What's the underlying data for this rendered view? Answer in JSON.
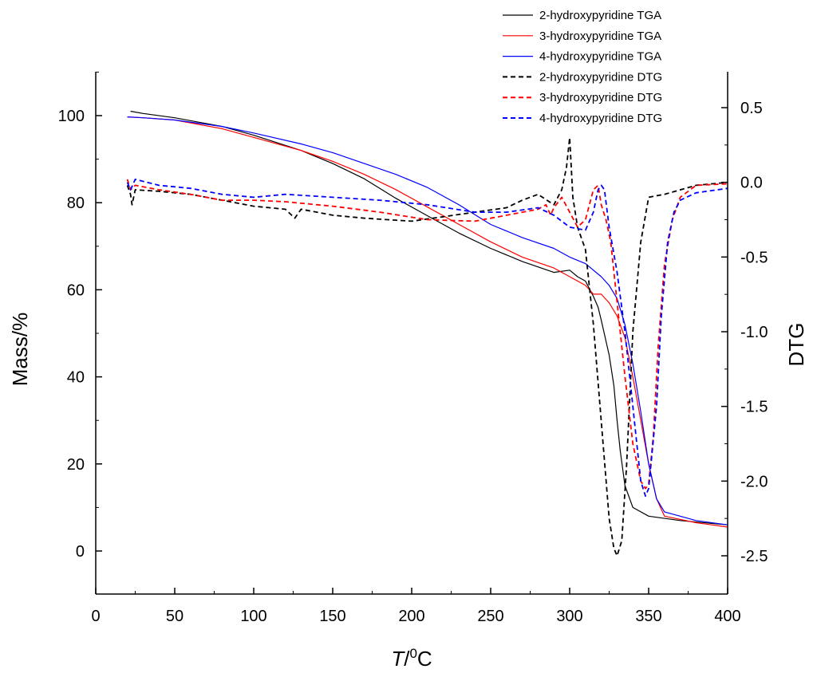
{
  "chart_data": {
    "type": "line",
    "xlabel_italic": "T",
    "xlabel_sup": "0",
    "xlabel_unit": "C",
    "xlabel_sep": "/",
    "ylabel": "Mass/%",
    "y2label": "DTG",
    "xlim": [
      0,
      400
    ],
    "ylim": [
      -10,
      110
    ],
    "y2lim": [
      -2.6,
      0.75
    ],
    "xticks": [
      0,
      50,
      100,
      150,
      200,
      250,
      300,
      350,
      400
    ],
    "yticks": [
      0,
      20,
      40,
      60,
      80,
      100
    ],
    "y2ticks": [
      0.5,
      0.0,
      -0.5,
      -1.0,
      -1.5,
      -2.0,
      -2.5
    ],
    "y2tick_labels": [
      "0.5",
      "0.0",
      "-0.5",
      "-1.0",
      "-1.5",
      "-2.0",
      "-2.5"
    ],
    "grid": false,
    "legend_position": "top-right",
    "series": [
      {
        "name": "2-hydroxypyridine TGA",
        "axis": "left",
        "color": "#000000",
        "dash": "solid",
        "x": [
          22,
          30,
          50,
          80,
          100,
          130,
          150,
          170,
          190,
          210,
          230,
          250,
          270,
          290,
          300,
          305,
          310,
          315,
          318,
          320,
          325,
          328,
          330,
          332,
          335,
          340,
          350,
          370,
          400
        ],
        "y": [
          101,
          100.5,
          99.5,
          97.5,
          95.5,
          92,
          89,
          85.5,
          81,
          77,
          73,
          69.5,
          66.5,
          64,
          64.5,
          63,
          62,
          58.5,
          56,
          53,
          45,
          38,
          30,
          23,
          15,
          10,
          8,
          7,
          6
        ]
      },
      {
        "name": "3-hydroxypyridine TGA",
        "axis": "left",
        "color": "#ff0000",
        "dash": "solid",
        "x": [
          20,
          30,
          50,
          80,
          100,
          130,
          150,
          170,
          190,
          210,
          230,
          250,
          270,
          290,
          300,
          310,
          315,
          320,
          325,
          330,
          335,
          340,
          345,
          350,
          355,
          360,
          380,
          400
        ],
        "y": [
          99.7,
          99.5,
          99,
          97,
          95,
          92,
          89.5,
          86.5,
          83,
          79,
          75,
          71,
          67.5,
          65,
          63,
          61,
          59,
          59,
          57,
          54,
          49,
          40,
          30,
          20,
          12,
          8,
          6.5,
          5.5
        ]
      },
      {
        "name": "4-hydroxypyridine TGA",
        "axis": "left",
        "color": "#0000ff",
        "dash": "solid",
        "x": [
          20,
          30,
          50,
          80,
          100,
          130,
          150,
          170,
          190,
          210,
          230,
          250,
          270,
          290,
          300,
          310,
          320,
          325,
          330,
          335,
          340,
          345,
          350,
          355,
          360,
          380,
          400
        ],
        "y": [
          99.7,
          99.5,
          99,
          97.5,
          96,
          93.5,
          91.5,
          89,
          86.5,
          83.5,
          79.5,
          75,
          72,
          69.5,
          67.5,
          66,
          63,
          61,
          58,
          52,
          43,
          32,
          20,
          12,
          9,
          7,
          6
        ]
      },
      {
        "name": "2-hydroxypyridine DTG",
        "axis": "right",
        "color": "#000000",
        "dash": "dashed",
        "x": [
          20,
          22,
          23,
          25,
          40,
          60,
          80,
          100,
          120,
          126,
          130,
          150,
          170,
          200,
          220,
          240,
          260,
          270,
          280,
          290,
          295,
          298,
          300,
          302,
          305,
          310,
          315,
          320,
          325,
          328,
          330,
          333,
          336,
          340,
          345,
          350,
          360,
          380,
          400
        ],
        "y": [
          -0.02,
          -0.08,
          -0.15,
          -0.05,
          -0.06,
          -0.08,
          -0.12,
          -0.16,
          -0.18,
          -0.24,
          -0.18,
          -0.22,
          -0.24,
          -0.26,
          -0.23,
          -0.2,
          -0.17,
          -0.12,
          -0.08,
          -0.15,
          -0.05,
          0.1,
          0.3,
          -0.1,
          -0.3,
          -0.45,
          -0.95,
          -1.6,
          -2.25,
          -2.45,
          -2.5,
          -2.4,
          -1.9,
          -1.0,
          -0.4,
          -0.1,
          -0.08,
          -0.02,
          0.0
        ]
      },
      {
        "name": "3-hydroxypyridine DTG",
        "axis": "right",
        "color": "#ff0000",
        "dash": "dashed",
        "x": [
          20,
          22,
          25,
          40,
          60,
          80,
          100,
          120,
          150,
          180,
          210,
          240,
          260,
          270,
          280,
          285,
          288,
          290,
          295,
          300,
          305,
          310,
          315,
          318,
          320,
          323,
          326,
          330,
          335,
          340,
          345,
          348,
          350,
          353,
          356,
          360,
          365,
          370,
          380,
          400
        ],
        "y": [
          0.02,
          -0.05,
          -0.02,
          -0.05,
          -0.08,
          -0.12,
          -0.12,
          -0.13,
          -0.16,
          -0.2,
          -0.25,
          -0.26,
          -0.22,
          -0.2,
          -0.18,
          -0.15,
          -0.22,
          -0.17,
          -0.1,
          -0.2,
          -0.3,
          -0.25,
          -0.05,
          -0.02,
          -0.15,
          -0.25,
          -0.4,
          -0.8,
          -1.3,
          -1.75,
          -2.0,
          -2.05,
          -2.02,
          -1.7,
          -1.1,
          -0.55,
          -0.25,
          -0.1,
          -0.02,
          -0.01
        ]
      },
      {
        "name": "4-hydroxypyridine DTG",
        "axis": "right",
        "color": "#0000ff",
        "dash": "dashed",
        "x": [
          20,
          22,
          25,
          40,
          60,
          80,
          100,
          120,
          150,
          180,
          210,
          240,
          260,
          280,
          290,
          300,
          310,
          315,
          318,
          320,
          322,
          325,
          330,
          335,
          340,
          345,
          348,
          350,
          355,
          358,
          362,
          366,
          370,
          380,
          400
        ],
        "y": [
          0.0,
          -0.05,
          0.02,
          -0.02,
          -0.04,
          -0.08,
          -0.1,
          -0.08,
          -0.1,
          -0.12,
          -0.15,
          -0.2,
          -0.2,
          -0.17,
          -0.22,
          -0.3,
          -0.32,
          -0.2,
          -0.05,
          -0.02,
          -0.05,
          -0.3,
          -0.6,
          -1.0,
          -1.5,
          -2.0,
          -2.1,
          -2.05,
          -1.5,
          -0.9,
          -0.4,
          -0.2,
          -0.12,
          -0.07,
          -0.04
        ]
      }
    ]
  }
}
